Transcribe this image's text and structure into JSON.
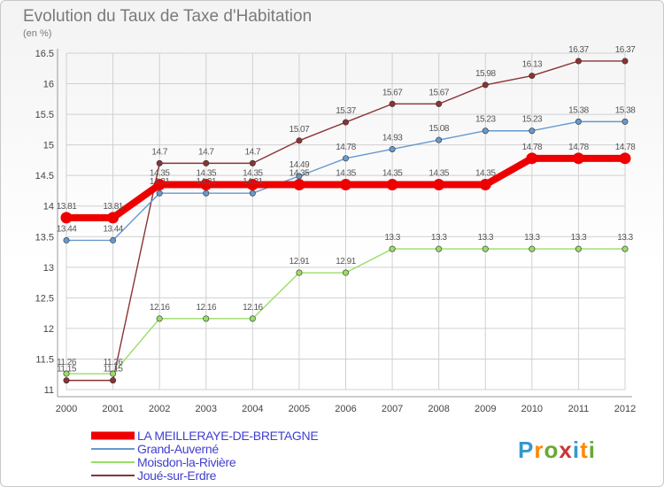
{
  "title": "Evolution du Taux de Taxe d'Habitation",
  "subtitle": "(en %)",
  "logo": "Proxiti",
  "colors": {
    "legend_text": "#4040d0",
    "grid": "#d0d0d0",
    "axis": "#999999"
  },
  "chart_data": {
    "type": "line",
    "x": [
      "2000",
      "2001",
      "2002",
      "2003",
      "2004",
      "2005",
      "2006",
      "2007",
      "2008",
      "2009",
      "2010",
      "2011",
      "2012"
    ],
    "ylim": [
      11,
      16.5
    ],
    "yticks": [
      11,
      11.5,
      12,
      12.5,
      13,
      13.5,
      14,
      14.5,
      15,
      15.5,
      16,
      16.5
    ],
    "ytick_labels": [
      "11",
      "11.5",
      "12",
      "12.5",
      "13",
      "13.5",
      "14",
      "14.5",
      "15",
      "15.5",
      "16",
      "16.5"
    ],
    "grid": true,
    "legend_position": "bottom-left",
    "series": [
      {
        "name": "LA MEILLERAYE-DE-BRETAGNE",
        "color": "#ee0000",
        "values": [
          13.81,
          13.81,
          14.35,
          14.35,
          14.35,
          14.35,
          14.35,
          14.35,
          14.35,
          14.35,
          14.78,
          14.78,
          14.78
        ],
        "labels": [
          "13.81",
          "13.81",
          "14.35",
          "14.35",
          "14.35",
          "14.35",
          "14.35",
          "14.35",
          "14.35",
          "14.35",
          "14.78",
          "14.78",
          "14.78"
        ]
      },
      {
        "name": "Grand-Auverné",
        "color": "#6699cc",
        "values": [
          13.44,
          13.44,
          14.21,
          14.21,
          14.21,
          14.49,
          14.78,
          14.93,
          15.08,
          15.23,
          15.23,
          15.38,
          15.38
        ],
        "labels": [
          "13.44",
          "13.44",
          "14.21",
          "14.21",
          "14.21",
          "14.49",
          "14.78",
          "14.93",
          "15.08",
          "15.23",
          "15.23",
          "15.38",
          "15.38"
        ]
      },
      {
        "name": "Moisdon-la-Rivière",
        "color": "#99dd66",
        "values": [
          11.26,
          11.26,
          12.16,
          12.16,
          12.16,
          12.91,
          12.91,
          13.3,
          13.3,
          13.3,
          13.3,
          13.3,
          13.3
        ],
        "labels": [
          "11.26",
          "11.26",
          "12.16",
          "12.16",
          "12.16",
          "12.91",
          "12.91",
          "13.3",
          "13.3",
          "13.3",
          "13.3",
          "13.3",
          "13.3"
        ]
      },
      {
        "name": "Joué-sur-Erdre",
        "color": "#8b3333",
        "values": [
          11.15,
          11.15,
          14.7,
          14.7,
          14.7,
          15.07,
          15.37,
          15.67,
          15.67,
          15.98,
          16.13,
          16.37,
          16.37
        ],
        "labels": [
          "11.15",
          "11.15",
          "14.7",
          "14.7",
          "14.7",
          "15.07",
          "15.37",
          "15.67",
          "15.67",
          "15.98",
          "16.13",
          "16.37",
          "16.37"
        ]
      }
    ]
  }
}
